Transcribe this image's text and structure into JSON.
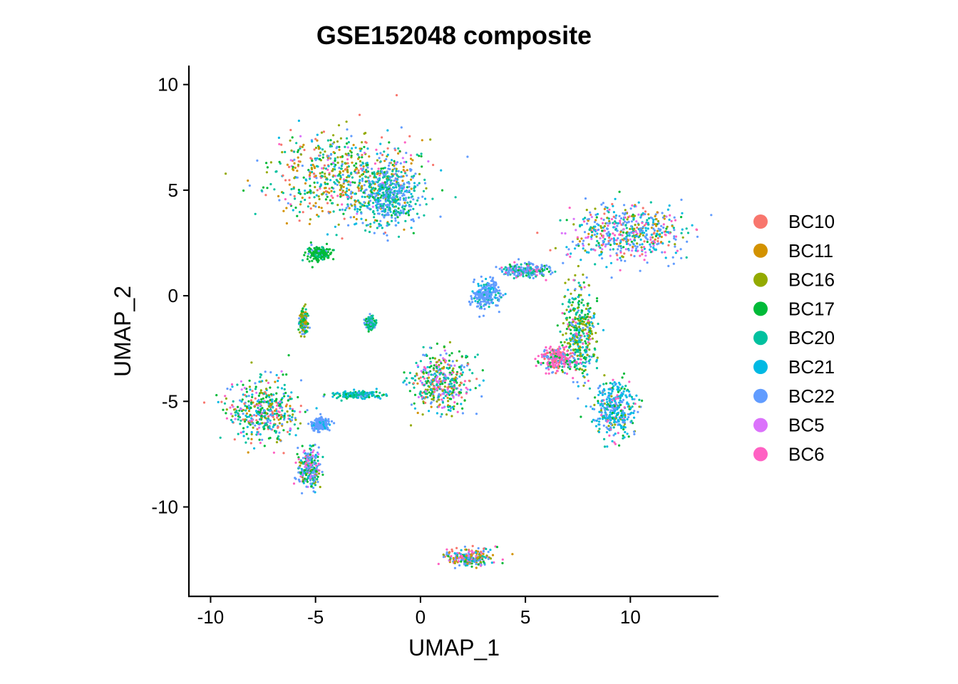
{
  "chart_data": {
    "type": "scatter",
    "title": "GSE152048 composite",
    "xlabel": "UMAP_1",
    "ylabel": "UMAP_2",
    "xlim": [
      -11,
      14.2
    ],
    "ylim": [
      -14.2,
      10.9
    ],
    "xticks": [
      -10,
      -5,
      0,
      5,
      10
    ],
    "xtick_labels": [
      "-10",
      "-5",
      "0",
      "5",
      "10"
    ],
    "yticks": [
      10,
      5,
      0,
      -5,
      -10
    ],
    "ytick_labels": [
      "10",
      "5",
      "0",
      "-5",
      "-10"
    ],
    "grid": false,
    "legend_position": "right",
    "series": [
      {
        "name": "BC10",
        "color": "#F8766D"
      },
      {
        "name": "BC11",
        "color": "#D39200"
      },
      {
        "name": "BC16",
        "color": "#93AA00"
      },
      {
        "name": "BC17",
        "color": "#00BA38"
      },
      {
        "name": "BC20",
        "color": "#00C19F"
      },
      {
        "name": "BC21",
        "color": "#00B9E3"
      },
      {
        "name": "BC22",
        "color": "#619CFF"
      },
      {
        "name": "BC5",
        "color": "#DB72FB"
      },
      {
        "name": "BC6",
        "color": "#FF61C3"
      }
    ],
    "clusters": [
      {
        "center": [
          -3.5,
          5.6
        ],
        "spread": [
          3.2,
          1.9
        ],
        "weights": [
          2,
          3,
          3,
          3,
          3,
          2,
          3,
          1,
          1
        ]
      },
      {
        "center": [
          -1.5,
          4.6
        ],
        "spread": [
          1.2,
          1.3
        ],
        "weights": [
          0,
          0,
          0,
          1,
          4,
          1,
          5,
          0,
          0
        ]
      },
      {
        "center": [
          -4.8,
          2.0
        ],
        "spread": [
          0.5,
          0.3
        ],
        "weights": [
          0,
          0,
          0,
          6,
          1,
          0,
          1,
          0,
          0
        ]
      },
      {
        "center": [
          9.8,
          3.0
        ],
        "spread": [
          2.6,
          1.2
        ],
        "weights": [
          1,
          1,
          2,
          1,
          2,
          3,
          6,
          1,
          2
        ]
      },
      {
        "center": [
          3.1,
          0.1
        ],
        "spread": [
          0.6,
          0.6
        ],
        "weights": [
          0,
          0,
          0,
          0,
          1,
          1,
          7,
          0,
          0
        ]
      },
      {
        "center": [
          7.6,
          -1.8
        ],
        "spread": [
          0.7,
          2.0
        ],
        "weights": [
          0,
          0,
          3,
          2,
          2,
          1,
          1,
          0,
          1
        ]
      },
      {
        "center": [
          9.3,
          -5.3
        ],
        "spread": [
          0.9,
          1.2
        ],
        "weights": [
          0,
          0,
          1,
          1,
          1,
          6,
          3,
          0,
          1
        ]
      },
      {
        "center": [
          1.0,
          -4.1
        ],
        "spread": [
          1.3,
          1.3
        ],
        "weights": [
          1,
          1,
          2,
          4,
          3,
          1,
          2,
          2,
          2
        ]
      },
      {
        "center": [
          -7.5,
          -5.4
        ],
        "spread": [
          1.5,
          1.3
        ],
        "weights": [
          2,
          1,
          2,
          4,
          3,
          3,
          3,
          1,
          1
        ]
      },
      {
        "center": [
          -5.3,
          -8.2
        ],
        "spread": [
          0.5,
          0.9
        ],
        "weights": [
          0,
          0,
          1,
          2,
          1,
          1,
          3,
          1,
          1
        ]
      },
      {
        "center": [
          -4.8,
          -6.1
        ],
        "spread": [
          0.4,
          0.3
        ],
        "weights": [
          0,
          0,
          0,
          0,
          0,
          1,
          6,
          0,
          0
        ]
      },
      {
        "center": [
          2.3,
          -12.4
        ],
        "spread": [
          1.0,
          0.4
        ],
        "weights": [
          1,
          2,
          2,
          2,
          1,
          1,
          4,
          1,
          2
        ]
      },
      {
        "center": [
          -5.6,
          -1.2
        ],
        "spread": [
          0.2,
          0.5
        ],
        "weights": [
          0,
          1,
          2,
          1,
          1,
          0,
          1,
          0,
          0
        ]
      },
      {
        "center": [
          -3.0,
          -4.7
        ],
        "spread": [
          1.1,
          0.15
        ],
        "weights": [
          0,
          0,
          0,
          1,
          4,
          2,
          2,
          0,
          0
        ]
      },
      {
        "center": [
          -2.4,
          -1.3
        ],
        "spread": [
          0.2,
          0.3
        ],
        "weights": [
          0,
          0,
          0,
          1,
          2,
          0,
          1,
          0,
          0
        ]
      },
      {
        "center": [
          5.0,
          1.2
        ],
        "spread": [
          1.0,
          0.3
        ],
        "weights": [
          0,
          0,
          0,
          1,
          1,
          0,
          3,
          0,
          1
        ]
      },
      {
        "center": [
          6.5,
          -3.0
        ],
        "spread": [
          0.7,
          0.5
        ],
        "weights": [
          1,
          0,
          0,
          1,
          0,
          0,
          2,
          0,
          4
        ]
      }
    ]
  }
}
